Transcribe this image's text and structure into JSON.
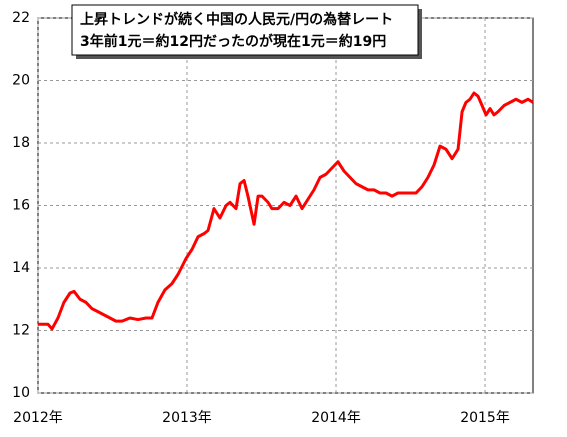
{
  "chart_data": {
    "type": "line",
    "title": "上昇トレンドが続く中国の人民元/円の為替レート",
    "subtitle": "3年前1元＝約12円だったのが現在1元＝約19円",
    "x": [
      2012,
      2012.067,
      2012.094,
      2012.134,
      2012.174,
      2012.215,
      2012.242,
      2012.282,
      2012.322,
      2012.362,
      2012.403,
      2012.443,
      2012.483,
      2012.523,
      2012.564,
      2012.617,
      2012.671,
      2012.725,
      2012.765,
      2012.805,
      2012.852,
      2012.899,
      2012.94,
      2012.993,
      2013.034,
      2013.074,
      2013.114,
      2013.141,
      2013.181,
      2013.221,
      2013.262,
      2013.289,
      2013.329,
      2013.356,
      2013.383,
      2013.409,
      2013.45,
      2013.477,
      2013.503,
      2013.544,
      2013.57,
      2013.611,
      2013.651,
      2013.691,
      2013.732,
      2013.772,
      2013.812,
      2013.852,
      2013.893,
      2013.933,
      2013.973,
      2014.013,
      2014.054,
      2014.094,
      2014.134,
      2014.174,
      2014.215,
      2014.255,
      2014.295,
      2014.336,
      2014.376,
      2014.416,
      2014.456,
      2014.497,
      2014.537,
      2014.577,
      2014.617,
      2014.658,
      2014.698,
      2014.738,
      2014.779,
      2014.819,
      2014.846,
      2014.872,
      2014.899,
      2014.926,
      2014.953,
      2014.98,
      2015.007,
      2015.034,
      2015.06,
      2015.087,
      2015.128,
      2015.168,
      2015.208,
      2015.248,
      2015.289,
      2015.322
    ],
    "series": [
      {
        "name": "人民元/円",
        "color": "#ff0000",
        "values": [
          12.2,
          12.2,
          12.05,
          12.4,
          12.9,
          13.2,
          13.25,
          13.0,
          12.9,
          12.7,
          12.6,
          12.5,
          12.4,
          12.3,
          12.3,
          12.4,
          12.35,
          12.4,
          12.4,
          12.9,
          13.3,
          13.5,
          13.8,
          14.3,
          14.6,
          15.0,
          15.1,
          15.2,
          15.9,
          15.6,
          16.0,
          16.1,
          15.9,
          16.7,
          16.8,
          16.3,
          15.4,
          16.3,
          16.3,
          16.1,
          15.9,
          15.9,
          16.1,
          16.0,
          16.3,
          15.9,
          16.2,
          16.5,
          16.9,
          17.0,
          17.2,
          17.4,
          17.1,
          16.9,
          16.7,
          16.6,
          16.5,
          16.5,
          16.4,
          16.4,
          16.3,
          16.4,
          16.4,
          16.4,
          16.4,
          16.6,
          16.9,
          17.3,
          17.9,
          17.8,
          17.5,
          17.8,
          19.0,
          19.3,
          19.4,
          19.6,
          19.5,
          19.2,
          18.9,
          19.1,
          18.9,
          19.0,
          19.2,
          19.3,
          19.4,
          19.3,
          19.4,
          19.3
        ]
      }
    ],
    "xlim": [
      2012,
      2015.322
    ],
    "xticks": [
      {
        "value": 2012,
        "label": "2012年"
      },
      {
        "value": 2013,
        "label": "2013年"
      },
      {
        "value": 2014,
        "label": "2014年"
      },
      {
        "value": 2015,
        "label": "2015年"
      }
    ],
    "ylim": [
      10,
      22
    ],
    "yticks": [
      10,
      12,
      14,
      16,
      18,
      20,
      22
    ],
    "grid": true
  }
}
